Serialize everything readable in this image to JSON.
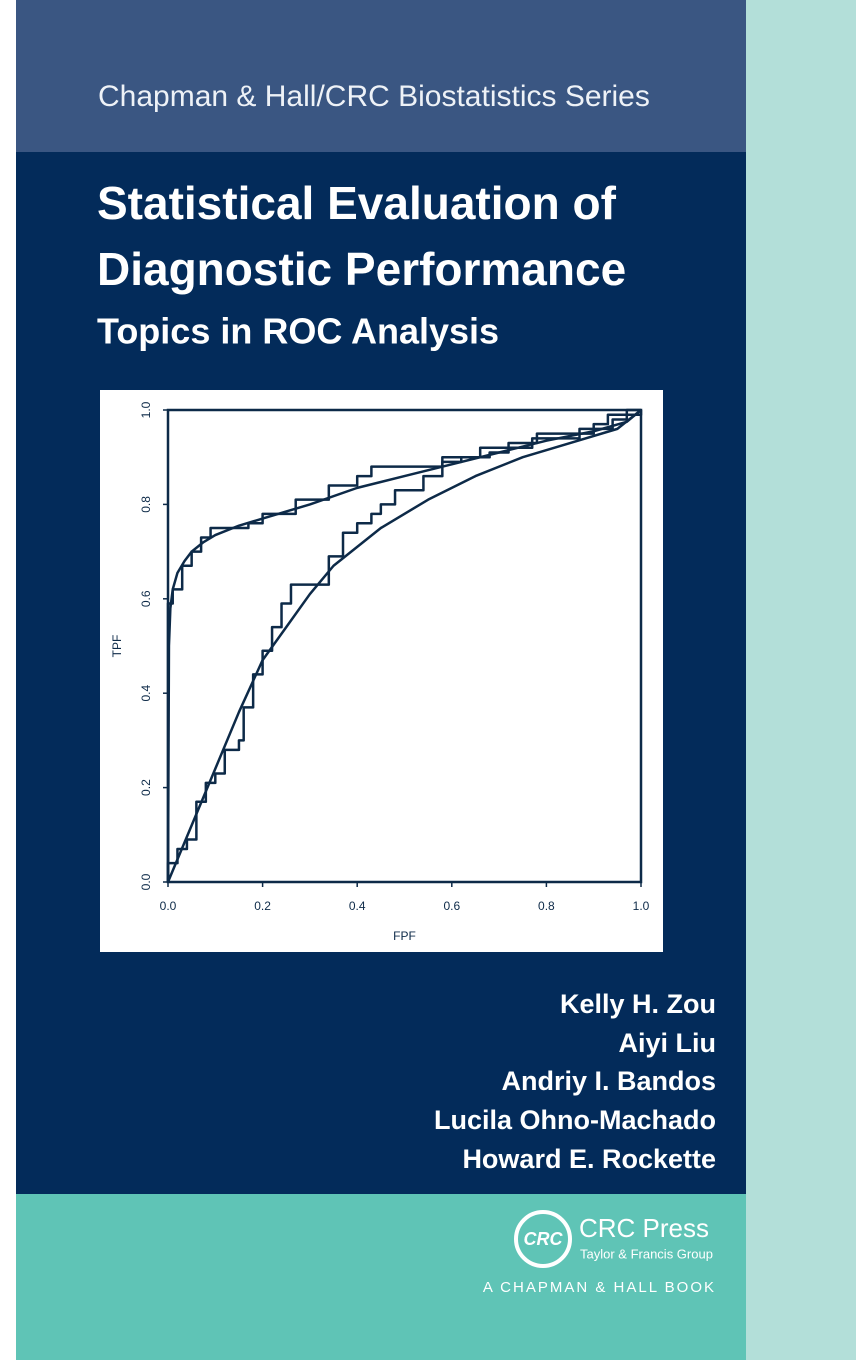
{
  "cover": {
    "series_name": "Chapman & Hall/CRC Biostatistics Series",
    "title_lines": [
      "Statistical Evaluation of",
      "Diagnostic Performance"
    ],
    "subtitle": "Topics in ROC Analysis",
    "authors": [
      "Kelly H. Zou",
      "Aiyi Liu",
      "Andriy I. Bandos",
      "Lucila Ohno-Machado",
      "Howard E. Rockette"
    ],
    "publisher": {
      "logo": "CRC",
      "name": "CRC Press",
      "group": "Taylor & Francis Group",
      "imprint": "A CHAPMAN & HALL BOOK"
    }
  },
  "chart_data": {
    "type": "line",
    "x_label": "FPF",
    "y_label": "TPF",
    "xlim": [
      0,
      1
    ],
    "ylim": [
      0,
      1
    ],
    "xticks": [
      {
        "value": 0,
        "label": "0.0"
      },
      0.2,
      0.4,
      0.6,
      0.8,
      {
        "value": 1,
        "label": "1.0"
      }
    ],
    "yticks": [
      {
        "value": 0,
        "label": "0.0"
      },
      0.2,
      0.4,
      0.6,
      0.8,
      {
        "value": 1,
        "label": "1.0"
      }
    ],
    "grid": false,
    "series": [
      {
        "color": "#0d2a48",
        "x": [
          0,
          0.002,
          0.005,
          0.01,
          0.02,
          0.035,
          0.05,
          0.075,
          0.1,
          0.15,
          0.2,
          0.3,
          0.4,
          0.5,
          0.6,
          0.7,
          0.8,
          0.9,
          0.97,
          1
        ],
        "values": [
          0,
          0.5,
          0.58,
          0.62,
          0.655,
          0.68,
          0.7,
          0.72,
          0.735,
          0.755,
          0.77,
          0.8,
          0.835,
          0.86,
          0.885,
          0.91,
          0.935,
          0.955,
          0.975,
          1
        ]
      },
      {
        "color": "#0d2a48",
        "x": [
          0,
          0,
          0.01,
          0.01,
          0.03,
          0.03,
          0.05,
          0.05,
          0.07,
          0.07,
          0.09,
          0.09,
          0.17,
          0.17,
          0.2,
          0.2,
          0.27,
          0.27,
          0.34,
          0.34,
          0.4,
          0.4,
          0.43,
          0.43,
          0.58,
          0.58,
          0.68,
          0.68,
          0.72,
          0.72,
          0.78,
          0.78,
          0.9,
          0.9,
          0.93,
          0.93,
          1,
          1
        ],
        "values": [
          0,
          0.59,
          0.59,
          0.62,
          0.62,
          0.67,
          0.67,
          0.7,
          0.7,
          0.73,
          0.73,
          0.75,
          0.75,
          0.76,
          0.76,
          0.78,
          0.78,
          0.81,
          0.81,
          0.84,
          0.84,
          0.86,
          0.86,
          0.88,
          0.88,
          0.9,
          0.9,
          0.91,
          0.91,
          0.93,
          0.93,
          0.95,
          0.95,
          0.97,
          0.97,
          0.99,
          0.99,
          1
        ]
      },
      {
        "color": "#0d2a48",
        "x": [
          0,
          0.05,
          0.1,
          0.15,
          0.2,
          0.25,
          0.3,
          0.35,
          0.45,
          0.55,
          0.65,
          0.75,
          0.85,
          0.95,
          1
        ],
        "values": [
          0,
          0.12,
          0.24,
          0.36,
          0.47,
          0.54,
          0.61,
          0.67,
          0.75,
          0.81,
          0.86,
          0.9,
          0.93,
          0.96,
          1
        ]
      },
      {
        "color": "#0d2a48",
        "x": [
          0,
          0,
          0.02,
          0.02,
          0.04,
          0.04,
          0.06,
          0.06,
          0.08,
          0.08,
          0.1,
          0.1,
          0.12,
          0.12,
          0.15,
          0.15,
          0.16,
          0.16,
          0.18,
          0.18,
          0.2,
          0.2,
          0.22,
          0.22,
          0.24,
          0.24,
          0.26,
          0.26,
          0.34,
          0.34,
          0.37,
          0.37,
          0.4,
          0.4,
          0.43,
          0.43,
          0.45,
          0.45,
          0.48,
          0.48,
          0.54,
          0.54,
          0.58,
          0.58,
          0.62,
          0.62,
          0.66,
          0.66,
          0.77,
          0.77,
          0.87,
          0.87,
          0.94,
          0.94,
          0.97,
          0.97,
          1
        ],
        "values": [
          0,
          0.04,
          0.04,
          0.07,
          0.07,
          0.09,
          0.09,
          0.17,
          0.17,
          0.21,
          0.21,
          0.23,
          0.23,
          0.28,
          0.28,
          0.3,
          0.3,
          0.37,
          0.37,
          0.44,
          0.44,
          0.49,
          0.49,
          0.54,
          0.54,
          0.59,
          0.59,
          0.63,
          0.63,
          0.69,
          0.69,
          0.74,
          0.74,
          0.76,
          0.76,
          0.78,
          0.78,
          0.8,
          0.8,
          0.83,
          0.83,
          0.86,
          0.86,
          0.89,
          0.89,
          0.9,
          0.9,
          0.92,
          0.92,
          0.94,
          0.94,
          0.96,
          0.96,
          0.98,
          0.98,
          1,
          1
        ]
      }
    ]
  }
}
